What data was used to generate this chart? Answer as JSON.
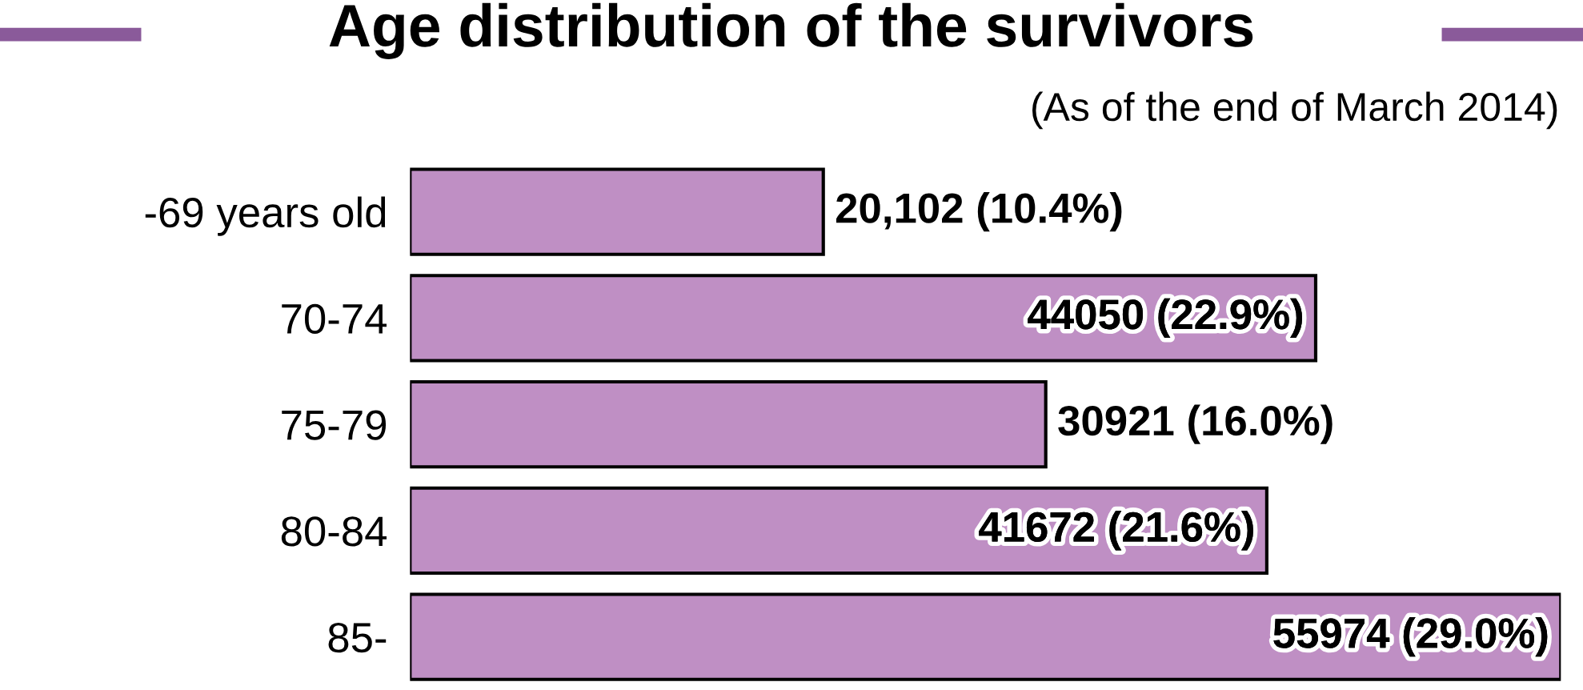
{
  "chart_data": {
    "type": "bar",
    "orientation": "horizontal",
    "title": "Age distribution of the survivors",
    "subtitle": "(As of the end of March 2014)",
    "categories": [
      "-69 years old",
      "70-74",
      "75-79",
      "80-84",
      "85-"
    ],
    "values": [
      20102,
      44050,
      30921,
      41672,
      55974
    ],
    "value_labels": [
      "20,102 (10.4%)",
      "44050 (22.9%)",
      "30921 (16.0%)",
      "41672 (21.6%)",
      "55974 (29.0%)"
    ],
    "color": "#bf8fc4",
    "grid": false,
    "legend": false
  }
}
